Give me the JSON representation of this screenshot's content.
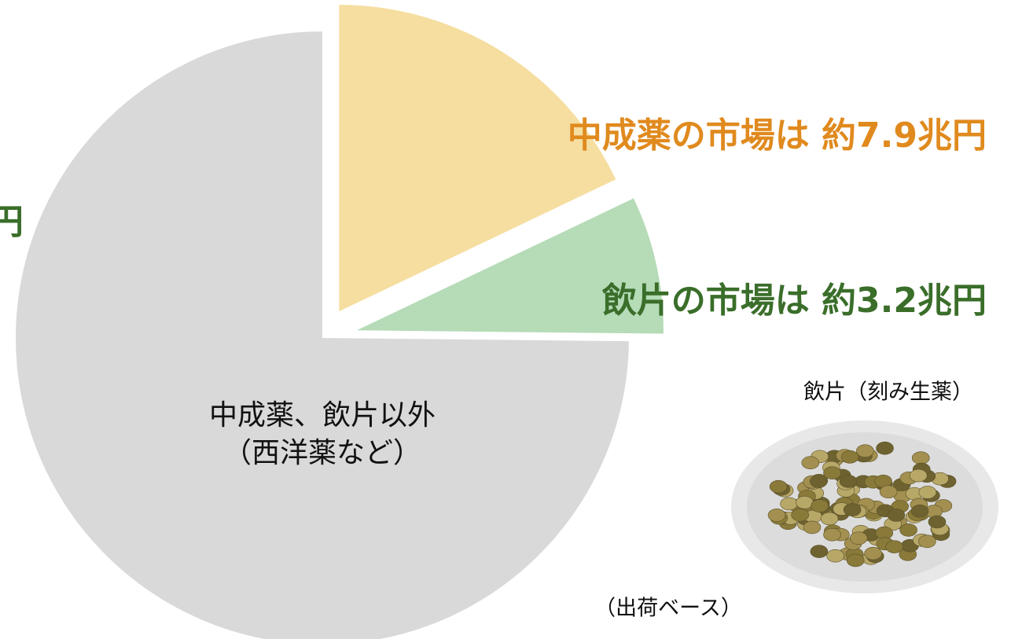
{
  "chart_data": {
    "type": "pie",
    "categories": [
      "中成薬",
      "飲片",
      [
        "中成薬、飲片以外",
        "（西洋薬など）"
      ]
    ],
    "values": [
      7.9,
      3.2,
      33
    ],
    "value_labels": [
      "中成薬の市場は 約7.9兆円",
      "飲片の市場は 約3.2兆円",
      null
    ],
    "colors": [
      "#f5dea0",
      "#b5dbb7",
      "#d9d9d9"
    ],
    "annotations": [
      "円",
      "飲片（刻み生薬）",
      "（出荷ベース）"
    ]
  }
}
